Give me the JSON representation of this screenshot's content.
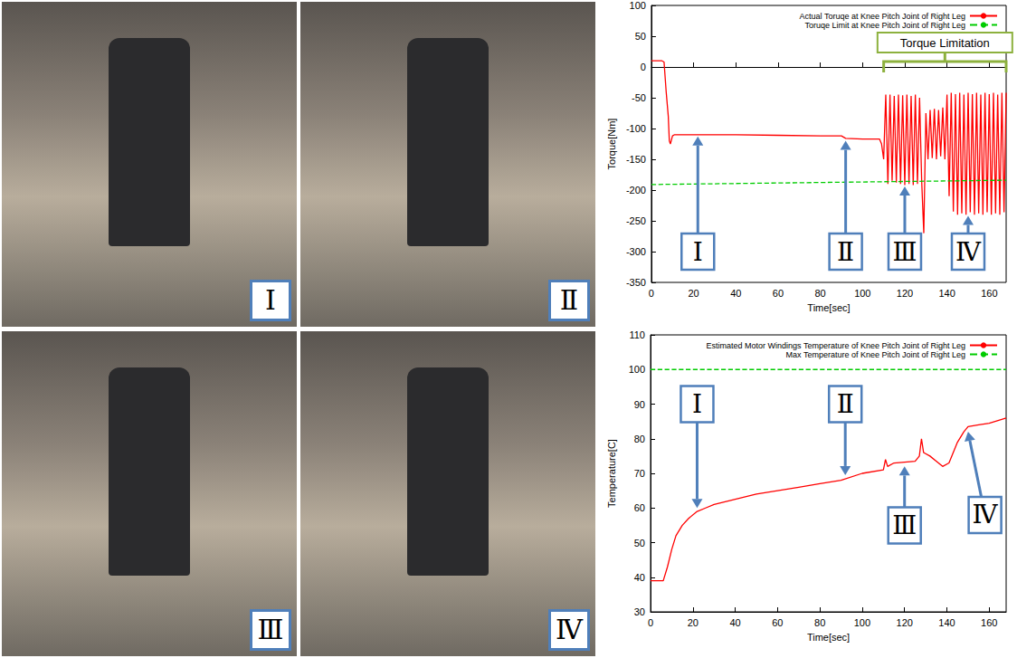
{
  "panels": [
    {
      "label": "Ⅰ"
    },
    {
      "label": "Ⅱ"
    },
    {
      "label": "Ⅲ"
    },
    {
      "label": "Ⅳ"
    }
  ],
  "chart_data": [
    {
      "type": "line",
      "x_label": "Time[sec]",
      "y_label": "Torque[Nm]",
      "xlim": [
        0,
        168
      ],
      "xticks": [
        0,
        20,
        40,
        60,
        80,
        100,
        120,
        140,
        160
      ],
      "ylim": [
        -350,
        100
      ],
      "yticks": [
        -350,
        -300,
        -250,
        -200,
        -150,
        -100,
        -50,
        0,
        50,
        100
      ],
      "grid": false,
      "legend": "upper right",
      "series": [
        {
          "name": "Actual Toruqe at Knee Pitch Joint of Right Leg",
          "color": "#ff0000",
          "line_style": "solid",
          "x": [
            0,
            5,
            6,
            7,
            8,
            8.5,
            9,
            10,
            11,
            20,
            40,
            60,
            80,
            90,
            92,
            100,
            108,
            109,
            110,
            111,
            112,
            113,
            114,
            115,
            116,
            117,
            118,
            119,
            120,
            121,
            122,
            123,
            124,
            125,
            126,
            127,
            128,
            129,
            130,
            131,
            132,
            133,
            134,
            135,
            136,
            137,
            138,
            139,
            140,
            141,
            142,
            143,
            144,
            145,
            146,
            147,
            148,
            149,
            150,
            151,
            152,
            153,
            154,
            155,
            156,
            157,
            158,
            159,
            160,
            161,
            162,
            163,
            164,
            165,
            166,
            167,
            168
          ],
          "values": [
            10,
            10,
            8,
            -40,
            -80,
            -120,
            -125,
            -112,
            -110,
            -110,
            -110,
            -111,
            -112,
            -112,
            -116,
            -117,
            -117,
            -125,
            -150,
            -45,
            -190,
            -45,
            -185,
            -47,
            -188,
            -45,
            -190,
            -46,
            -192,
            -45,
            -190,
            -47,
            -192,
            -45,
            -190,
            -50,
            -185,
            -270,
            -75,
            -150,
            -70,
            -148,
            -68,
            -150,
            -70,
            -145,
            -66,
            -150,
            -45,
            -210,
            -42,
            -235,
            -44,
            -240,
            -42,
            -238,
            -45,
            -240,
            -42,
            -236,
            -44,
            -240,
            -42,
            -238,
            -45,
            -240,
            -42,
            -236,
            -44,
            -240,
            -42,
            -238,
            -45,
            -240,
            -42,
            -236,
            -42
          ]
        },
        {
          "name": "Toruqe Limit at Knee Pitch Joint of Right Leg",
          "color": "#00cc00",
          "line_style": "dashed",
          "x": [
            0,
            168
          ],
          "values": [
            -191,
            -184
          ]
        }
      ],
      "annotations": [
        {
          "text": "Ⅰ",
          "x": 22,
          "y": -300,
          "target_x": 22,
          "target_y": -113
        },
        {
          "text": "Ⅱ",
          "x": 92,
          "y": -300,
          "target_x": 92,
          "target_y": -120
        },
        {
          "text": "Ⅲ",
          "x": 120,
          "y": -300,
          "target_x": 120,
          "target_y": -194
        },
        {
          "text": "Ⅳ",
          "x": 150,
          "y": -300,
          "target_x": 150,
          "target_y": -242
        }
      ],
      "bracket": {
        "text": "Torque Limitation",
        "x": [
          110,
          168
        ]
      }
    },
    {
      "type": "line",
      "x_label": "Time[sec]",
      "y_label": "Temperature[C]",
      "xlim": [
        0,
        168
      ],
      "xticks": [
        0,
        20,
        40,
        60,
        80,
        100,
        120,
        140,
        160
      ],
      "ylim": [
        30,
        110
      ],
      "yticks": [
        30,
        40,
        50,
        60,
        70,
        80,
        90,
        100,
        110
      ],
      "grid": false,
      "legend": "upper right",
      "series": [
        {
          "name": "Estimated Motor Windings Temperature of Knee Pitch Joint of Right Leg",
          "color": "#ff0000",
          "line_style": "solid",
          "x": [
            0,
            6,
            8,
            10,
            12,
            15,
            18,
            22,
            26,
            30,
            40,
            50,
            60,
            70,
            80,
            90,
            100,
            110,
            111,
            112,
            115,
            125,
            127,
            128,
            129,
            132,
            138,
            141,
            145,
            148,
            150,
            155,
            160,
            168
          ],
          "values": [
            39,
            39,
            43,
            48,
            52,
            55,
            57,
            59,
            60,
            61,
            62.5,
            64,
            65,
            66,
            67,
            68,
            70,
            71,
            74,
            72,
            73,
            73.5,
            75,
            80,
            76,
            75,
            72,
            73,
            79,
            82,
            83.5,
            84,
            84.5,
            86
          ]
        },
        {
          "name": "Max Temperature of Knee Pitch Joint of Right Leg",
          "color": "#00cc00",
          "line_style": "dashed",
          "x": [
            0,
            168
          ],
          "values": [
            100,
            100
          ]
        }
      ],
      "annotations": [
        {
          "text": "Ⅰ",
          "x": 22,
          "y": 90,
          "target_x": 22,
          "target_y": 60
        },
        {
          "text": "Ⅱ",
          "x": 92,
          "y": 90,
          "target_x": 92,
          "target_y": 69.5
        },
        {
          "text": "Ⅲ",
          "x": 120,
          "y": 55,
          "target_x": 120,
          "target_y": 72
        },
        {
          "text": "Ⅳ",
          "x": 158,
          "y": 58,
          "target_x": 150,
          "target_y": 82
        }
      ]
    }
  ]
}
